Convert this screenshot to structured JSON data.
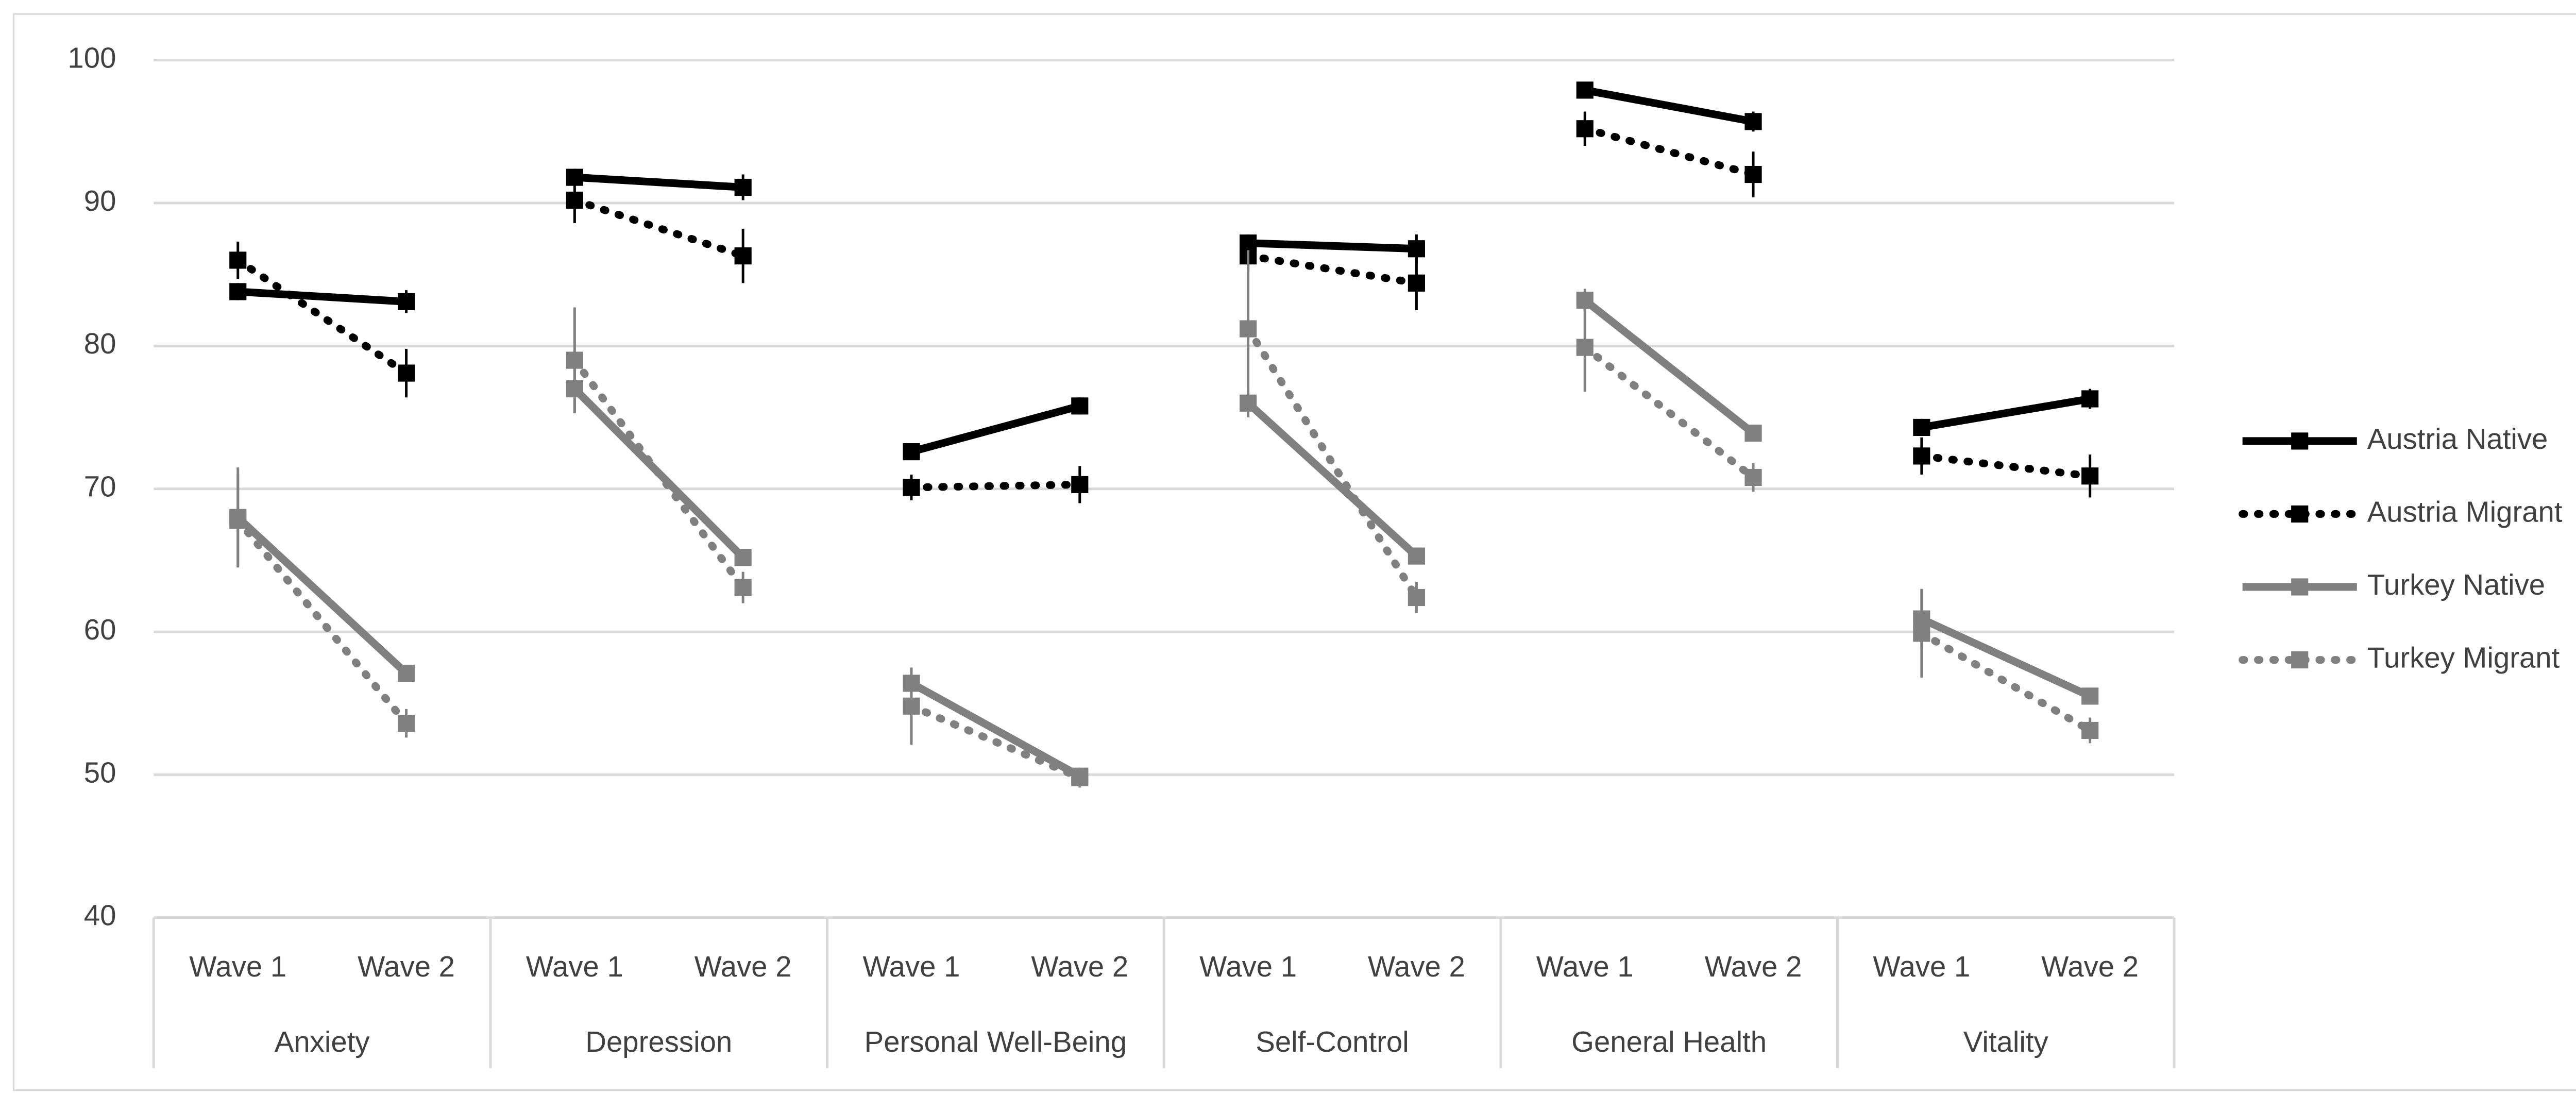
{
  "chart_data": {
    "type": "line",
    "categories": [
      "Wave 1",
      "Wave 2",
      "Wave 1",
      "Wave 2",
      "Wave 1",
      "Wave 2",
      "Wave 1",
      "Wave 2",
      "Wave 1",
      "Wave 2",
      "Wave 1",
      "Wave 2"
    ],
    "groups": [
      "Anxiety",
      "Depression",
      "Personal Well-Being",
      "Self-Control",
      "General Health",
      "Vitality"
    ],
    "ylim": [
      40,
      100
    ],
    "yticks": [
      40,
      50,
      60,
      70,
      80,
      90,
      100
    ],
    "grid": true,
    "legend": "right",
    "series": [
      {
        "name": "Austria Native",
        "color": "#000000",
        "style": "solid",
        "values": [
          83.8,
          83.1,
          91.8,
          91.1,
          72.6,
          75.8,
          87.2,
          86.8,
          97.9,
          95.7,
          74.3,
          76.3
        ],
        "errors": [
          0.6,
          0.8,
          0.6,
          0.9,
          0.4,
          0.6,
          0.6,
          1.0,
          0.5,
          0.7,
          0.6,
          0.7
        ]
      },
      {
        "name": "Austria Migrant",
        "color": "#000000",
        "style": "dotted",
        "values": [
          86.0,
          78.1,
          90.2,
          86.3,
          70.1,
          70.3,
          86.3,
          84.4,
          95.2,
          92.0,
          72.3,
          70.9
        ],
        "errors": [
          1.3,
          1.7,
          1.6,
          1.9,
          0.9,
          1.3,
          1.0,
          1.9,
          1.2,
          1.6,
          1.3,
          1.5
        ]
      },
      {
        "name": "Turkey Native",
        "color": "#808080",
        "style": "solid",
        "values": [
          68.0,
          57.1,
          77.0,
          65.2,
          56.4,
          49.9,
          76.0,
          65.3,
          83.2,
          73.9,
          60.9,
          55.5
        ],
        "errors": [
          3.5,
          0.5,
          1.7,
          0.5,
          1.0,
          0.4,
          1.0,
          0.5,
          0.8,
          0.4,
          2.1,
          0.4
        ]
      },
      {
        "name": "Turkey Migrant",
        "color": "#808080",
        "style": "dotted",
        "values": [
          67.8,
          53.6,
          79.0,
          63.1,
          54.8,
          49.8,
          81.2,
          62.4,
          79.9,
          70.8,
          59.9,
          53.1
        ],
        "errors": [
          3.2,
          1.0,
          3.7,
          1.1,
          2.7,
          0.7,
          5.5,
          1.1,
          3.1,
          1.0,
          3.1,
          0.9
        ]
      }
    ]
  }
}
